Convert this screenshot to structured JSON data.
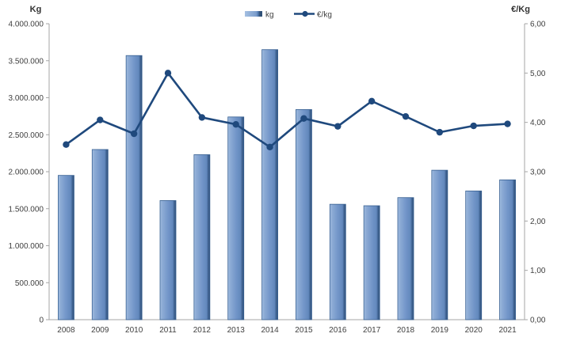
{
  "chart_data": {
    "type": "bar",
    "subtype": "bar+line combo",
    "categories": [
      "2008",
      "2009",
      "2010",
      "2011",
      "2012",
      "2013",
      "2014",
      "2015",
      "2016",
      "2017",
      "2018",
      "2019",
      "2020",
      "2021"
    ],
    "series": [
      {
        "name": "kg",
        "type": "bar",
        "axis": "left",
        "values": [
          1950000,
          2300000,
          3570000,
          1610000,
          2230000,
          2740000,
          3650000,
          2840000,
          1560000,
          1540000,
          1650000,
          2020000,
          1740000,
          1890000
        ]
      },
      {
        "name": "€/kg",
        "type": "line",
        "axis": "right",
        "values": [
          3.55,
          4.05,
          3.77,
          5.0,
          4.1,
          3.96,
          3.5,
          4.08,
          3.92,
          4.43,
          4.12,
          3.8,
          3.93,
          3.97
        ]
      }
    ],
    "left_axis": {
      "title": "Kg",
      "min": 0,
      "max": 4000000,
      "step": 500000,
      "tick_labels": [
        "0",
        "500.000",
        "1.000.000",
        "1.500.000",
        "2.000.000",
        "2.500.000",
        "3.000.000",
        "3.500.000",
        "4.000.000"
      ]
    },
    "right_axis": {
      "title": "€/Kg",
      "min": 0,
      "max": 6,
      "step": 1,
      "tick_labels": [
        "0,00",
        "1,00",
        "2,00",
        "3,00",
        "4,00",
        "5,00",
        "6,00"
      ]
    },
    "legend": {
      "position": "top-center",
      "items": [
        {
          "label": "kg",
          "swatch": "bar"
        },
        {
          "label": "€/kg",
          "swatch": "line-marker"
        }
      ]
    },
    "grid": "off",
    "colors": {
      "bar_fill": "#7396C9",
      "bar_light": "#A5C0E2",
      "bar_dark": "#2F5077",
      "bar_stroke": "#365F91",
      "line": "#1F497D",
      "axis_line": "#A6A6A6",
      "text": "#404040",
      "background": "#FFFFFF"
    }
  }
}
